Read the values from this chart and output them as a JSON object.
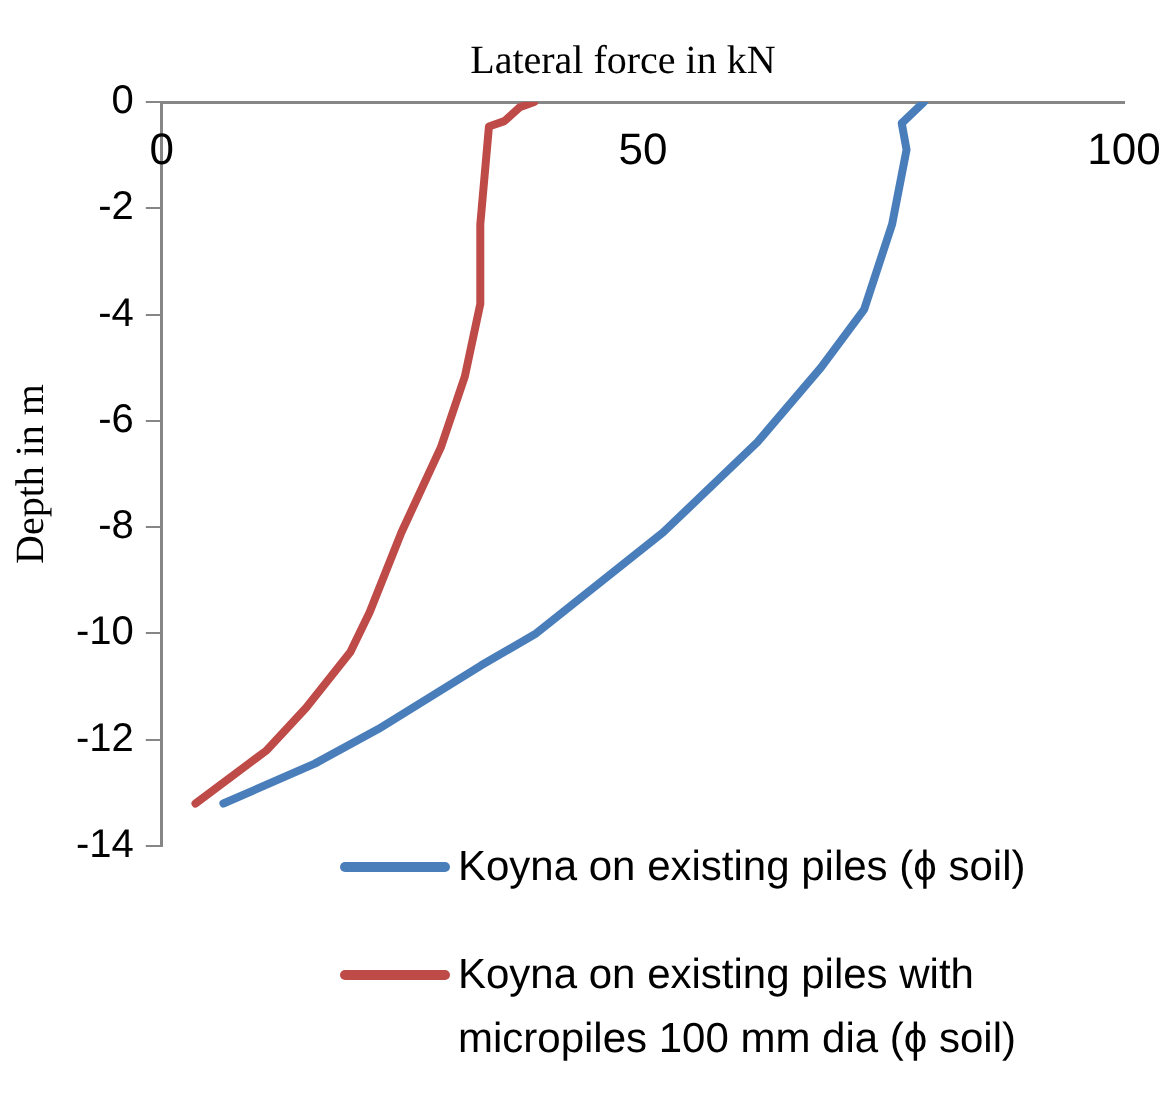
{
  "chart_data": {
    "type": "line",
    "xlabel": "Lateral force in kN",
    "ylabel": "Depth in m",
    "xlim": [
      0,
      100
    ],
    "xticks": [
      0,
      50,
      100
    ],
    "ylim": [
      -14,
      0
    ],
    "yticks": [
      -14,
      -12,
      -10,
      -8,
      -6,
      -4,
      -2,
      0
    ],
    "grid": false,
    "legend": "bottom right",
    "marker": "none",
    "line_style": "solid",
    "series": [
      {
        "name": "Koyna on existing piles (ϕ soil)",
        "color": "#4a7ebb",
        "x": [
          79.2,
          76.9,
          77.4,
          75.9,
          73.0,
          68.5,
          61.9,
          52.1,
          38.9,
          33.2,
          22.5,
          15.9,
          6.4
        ],
        "values": [
          0,
          -0.4,
          -0.9,
          -2.3,
          -3.9,
          -5.0,
          -6.4,
          -8.1,
          -10.0,
          -10.6,
          -11.8,
          -12.45,
          -13.2
        ]
      },
      {
        "name": "Koyna on existing piles with micropiles 100 mm dia (ϕ soil)",
        "color": "#be4b48",
        "x": [
          38.7,
          37.2,
          35.6,
          34.0,
          33.1,
          33.1,
          31.5,
          29.0,
          24.9,
          21.6,
          19.6,
          15.0,
          10.9,
          3.5
        ],
        "values": [
          0,
          -0.1,
          -0.36,
          -0.46,
          -2.3,
          -3.8,
          -5.16,
          -6.5,
          -8.1,
          -9.6,
          -10.35,
          -11.4,
          -12.2,
          -13.2
        ]
      }
    ]
  }
}
